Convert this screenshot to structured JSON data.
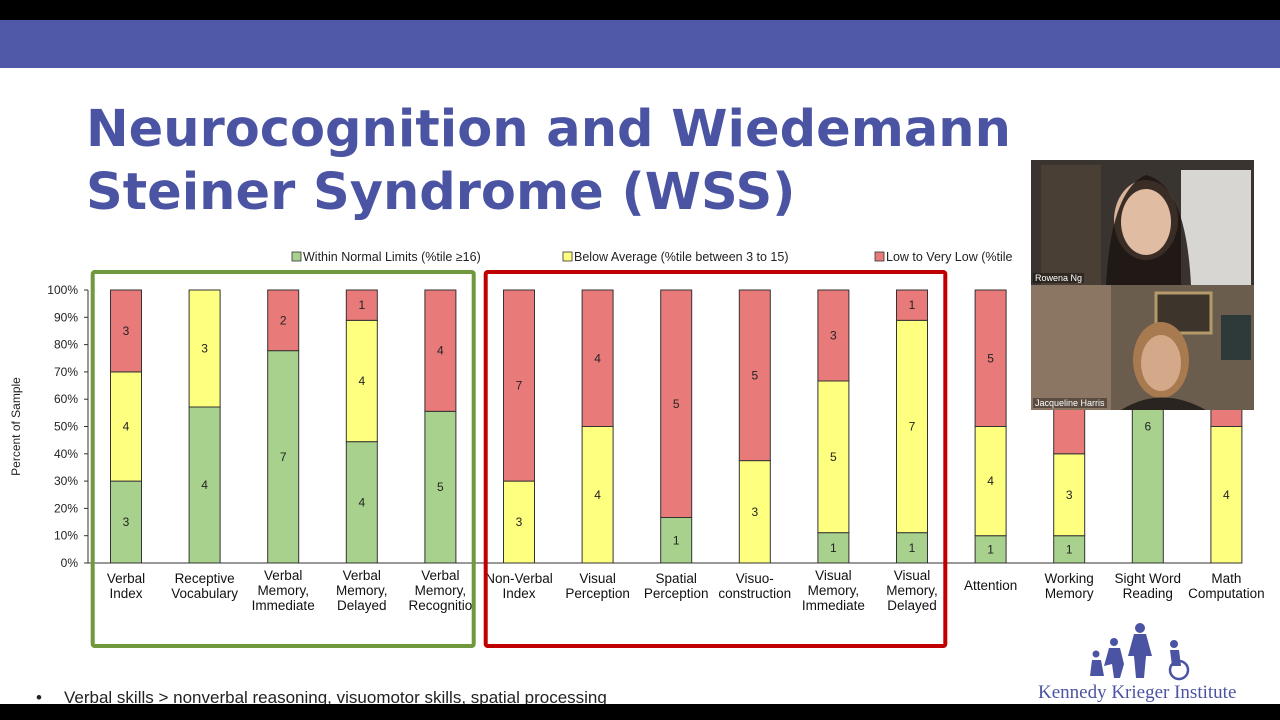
{
  "slide": {
    "title": "Neurocognition and Wiedemann Steiner Syndrome (WSS)",
    "bullet": "Verbal skills > nonverbal reasoning, visuomotor skills, spatial processing"
  },
  "participants": [
    {
      "name": "Rowena Ng"
    },
    {
      "name": "Jacqueline Harris"
    }
  ],
  "logo": {
    "text": "Kennedy Krieger Institute"
  },
  "colors": {
    "band": "#5058a8",
    "title": "#4a54a3",
    "within": "#a9d18e",
    "below": "#ffff7f",
    "low": "#e87a7a",
    "box_green": "#70983c",
    "box_red": "#c00000"
  },
  "chart_data": {
    "type": "bar",
    "stacked": true,
    "ylabel": "Percent of Sample",
    "yticks": [
      "0%",
      "10%",
      "20%",
      "30%",
      "40%",
      "50%",
      "60%",
      "70%",
      "80%",
      "90%",
      "100%"
    ],
    "ylim": [
      0,
      100
    ],
    "legend_labels": [
      "Within  Normal Limits  (%tile ≥16)",
      "Below  Average  (%tile  between  3  to  15)",
      "Low  to  Very  Low  (%tile"
    ],
    "categories": [
      [
        "Verbal",
        "Index"
      ],
      [
        "Receptive",
        "Vocabulary"
      ],
      [
        "Verbal",
        "Memory,",
        "Immediate"
      ],
      [
        "Verbal",
        "Memory,",
        "Delayed"
      ],
      [
        "Verbal",
        "Memory,",
        "Recognitio"
      ],
      [
        "Non-Verbal",
        "Index"
      ],
      [
        "Visual",
        "Perception"
      ],
      [
        "Spatial",
        "Perception"
      ],
      [
        "Visuo-",
        "construction"
      ],
      [
        "Visual",
        "Memory,",
        "Immediate"
      ],
      [
        "Visual",
        "Memory,",
        "Delayed"
      ],
      [
        "Attention"
      ],
      [
        "Working",
        "Memory"
      ],
      [
        "Sight Word",
        "Reading"
      ],
      [
        "Math",
        "Computation"
      ]
    ],
    "series": [
      {
        "name": "Within  Normal Limits  (%tile ≥16)",
        "values": [
          3,
          4,
          7,
          4,
          5,
          0,
          0,
          1,
          0,
          1,
          1,
          1,
          1,
          6,
          0
        ]
      },
      {
        "name": "Below  Average  (%tile  between  3  to  15)",
        "values": [
          4,
          3,
          0,
          4,
          0,
          3,
          4,
          0,
          3,
          5,
          7,
          4,
          3,
          0,
          4
        ]
      },
      {
        "name": "Low  to  Very  Low  (%tile",
        "values": [
          3,
          0,
          2,
          1,
          4,
          7,
          4,
          5,
          5,
          3,
          1,
          5,
          6,
          0,
          4
        ]
      }
    ],
    "groups": [
      {
        "color": "green",
        "categories": [
          0,
          4
        ]
      },
      {
        "color": "red",
        "categories": [
          5,
          10
        ]
      }
    ]
  }
}
